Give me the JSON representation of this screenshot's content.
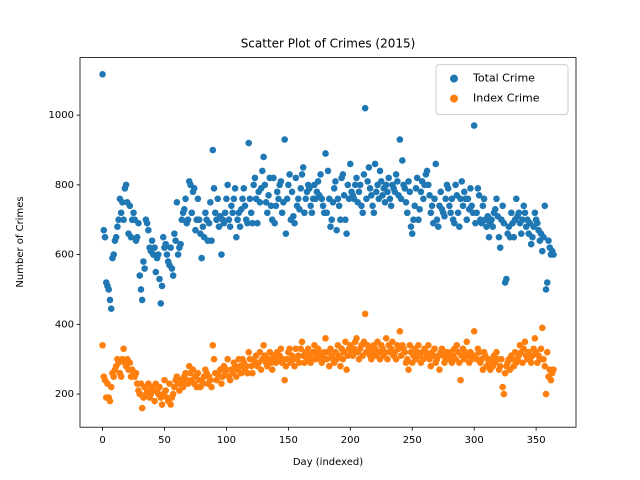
{
  "chart_data": {
    "type": "scatter",
    "title": "Scatter Plot of Crimes (2015)",
    "x_label": "Day (indexed)",
    "y_label": "Number of Crimes",
    "legend": "upper right",
    "xlim": [
      -18.2,
      382.2
    ],
    "ylim": [
      105,
      1165
    ],
    "xticks": [
      0,
      50,
      100,
      150,
      200,
      250,
      300,
      350
    ],
    "yticks": [
      200,
      400,
      600,
      800,
      1000
    ],
    "x": [
      0,
      1,
      2,
      3,
      4,
      5,
      6,
      7,
      8,
      9,
      10,
      11,
      12,
      13,
      14,
      15,
      16,
      17,
      18,
      19,
      20,
      21,
      22,
      23,
      24,
      25,
      26,
      27,
      28,
      29,
      30,
      31,
      32,
      33,
      34,
      35,
      36,
      37,
      38,
      39,
      40,
      41,
      42,
      43,
      44,
      45,
      46,
      47,
      48,
      49,
      50,
      51,
      52,
      53,
      54,
      55,
      56,
      57,
      58,
      59,
      60,
      61,
      62,
      63,
      64,
      65,
      66,
      67,
      68,
      69,
      70,
      71,
      72,
      73,
      74,
      75,
      76,
      77,
      78,
      79,
      80,
      81,
      82,
      83,
      84,
      85,
      86,
      87,
      88,
      89,
      90,
      91,
      92,
      93,
      94,
      95,
      96,
      97,
      98,
      99,
      100,
      101,
      102,
      103,
      104,
      105,
      106,
      107,
      108,
      109,
      110,
      111,
      112,
      113,
      114,
      115,
      116,
      117,
      118,
      119,
      120,
      121,
      122,
      123,
      124,
      125,
      126,
      127,
      128,
      129,
      130,
      131,
      132,
      133,
      134,
      135,
      136,
      137,
      138,
      139,
      140,
      141,
      142,
      143,
      144,
      145,
      146,
      147,
      148,
      149,
      150,
      151,
      152,
      153,
      154,
      155,
      156,
      157,
      158,
      159,
      160,
      161,
      162,
      163,
      164,
      165,
      166,
      167,
      168,
      169,
      170,
      171,
      172,
      173,
      174,
      175,
      176,
      177,
      178,
      179,
      180,
      181,
      182,
      183,
      184,
      185,
      186,
      187,
      188,
      189,
      190,
      191,
      192,
      193,
      194,
      195,
      196,
      197,
      198,
      199,
      200,
      201,
      202,
      203,
      204,
      205,
      206,
      207,
      208,
      209,
      210,
      211,
      212,
      213,
      214,
      215,
      216,
      217,
      218,
      219,
      220,
      221,
      222,
      223,
      224,
      225,
      226,
      227,
      228,
      229,
      230,
      231,
      232,
      233,
      234,
      235,
      236,
      237,
      238,
      239,
      240,
      241,
      242,
      243,
      244,
      245,
      246,
      247,
      248,
      249,
      250,
      251,
      252,
      253,
      254,
      255,
      256,
      257,
      258,
      259,
      260,
      261,
      262,
      263,
      264,
      265,
      266,
      267,
      268,
      269,
      270,
      271,
      272,
      273,
      274,
      275,
      276,
      277,
      278,
      279,
      280,
      281,
      282,
      283,
      284,
      285,
      286,
      287,
      288,
      289,
      290,
      291,
      292,
      293,
      294,
      295,
      296,
      297,
      298,
      299,
      300,
      301,
      302,
      303,
      304,
      305,
      306,
      307,
      308,
      309,
      310,
      311,
      312,
      313,
      314,
      315,
      316,
      317,
      318,
      319,
      320,
      321,
      322,
      323,
      324,
      325,
      326,
      327,
      328,
      329,
      330,
      331,
      332,
      333,
      334,
      335,
      336,
      337,
      338,
      339,
      340,
      341,
      342,
      343,
      344,
      345,
      346,
      347,
      348,
      349,
      350,
      351,
      352,
      353,
      354,
      355,
      356,
      357,
      358,
      359,
      360,
      361,
      362,
      363,
      364
    ],
    "series": [
      {
        "name": "Total Crime",
        "color": "#1f77b4",
        "values": [
          1117,
          670,
          650,
          520,
          510,
          500,
          470,
          445,
          590,
          600,
          640,
          650,
          680,
          700,
          760,
          720,
          750,
          700,
          790,
          800,
          750,
          660,
          740,
          650,
          700,
          720,
          700,
          640,
          650,
          690,
          540,
          500,
          470,
          580,
          560,
          700,
          690,
          670,
          620,
          610,
          640,
          600,
          620,
          550,
          590,
          600,
          530,
          460,
          510,
          650,
          620,
          630,
          600,
          580,
          570,
          620,
          560,
          540,
          660,
          640,
          750,
          600,
          620,
          630,
          700,
          720,
          730,
          760,
          690,
          700,
          810,
          800,
          720,
          780,
          790,
          670,
          700,
          760,
          700,
          660,
          590,
          680,
          650,
          720,
          700,
          640,
          690,
          750,
          640,
          900,
          790,
          720,
          700,
          760,
          680,
          710,
          600,
          700,
          690,
          720,
          760,
          800,
          700,
          680,
          740,
          720,
          760,
          790,
          650,
          700,
          720,
          680,
          730,
          760,
          790,
          740,
          700,
          690,
          920,
          760,
          720,
          690,
          800,
          820,
          760,
          690,
          780,
          750,
          790,
          840,
          880,
          800,
          750,
          720,
          770,
          820,
          740,
          700,
          820,
          690,
          740,
          780,
          760,
          800,
          810,
          720,
          750,
          930,
          660,
          760,
          800,
          830,
          700,
          780,
          710,
          690,
          820,
          740,
          760,
          730,
          790,
          830,
          850,
          720,
          760,
          780,
          800,
          790,
          740,
          720,
          760,
          800,
          760,
          780,
          810,
          770,
          830,
          760,
          740,
          720,
          890,
          720,
          840,
          760,
          680,
          700,
          750,
          790,
          810,
          670,
          760,
          740,
          700,
          820,
          830,
          770,
          700,
          660,
          800,
          760,
          860,
          780,
          770,
          760,
          800,
          820,
          750,
          780,
          800,
          740,
          720,
          830,
          1020,
          760,
          810,
          850,
          790,
          770,
          740,
          720,
          860,
          780,
          800,
          760,
          840,
          810,
          770,
          790,
          750,
          800,
          780,
          820,
          760,
          740,
          800,
          790,
          780,
          830,
          810,
          770,
          930,
          760,
          870,
          800,
          790,
          750,
          720,
          810,
          780,
          680,
          660,
          700,
          740,
          790,
          820,
          700,
          730,
          780,
          810,
          760,
          800,
          830,
          840,
          800,
          770,
          720,
          740,
          690,
          760,
          860,
          700,
          680,
          740,
          780,
          730,
          720,
          710,
          760,
          800,
          790,
          740,
          720,
          760,
          700,
          690,
          800,
          770,
          720,
          680,
          760,
          810,
          740,
          780,
          760,
          700,
          760,
          730,
          790,
          740,
          720,
          970,
          690,
          720,
          790,
          770,
          700,
          690,
          740,
          760,
          700,
          680,
          710,
          650,
          690,
          700,
          680,
          720,
          730,
          760,
          710,
          650,
          620,
          700,
          740,
          690,
          520,
          530,
          660,
          680,
          650,
          720,
          690,
          650,
          700,
          760,
          710,
          720,
          690,
          660,
          700,
          740,
          720,
          680,
          700,
          660,
          690,
          630,
          650,
          680,
          720,
          700,
          690,
          670,
          640,
          660,
          610,
          650,
          740,
          500,
          520,
          640,
          620,
          600,
          610,
          600
        ]
      },
      {
        "name": "Index Crime",
        "color": "#ff7f0e",
        "values": [
          340,
          250,
          240,
          190,
          230,
          190,
          180,
          220,
          260,
          250,
          270,
          280,
          300,
          290,
          260,
          250,
          300,
          330,
          290,
          280,
          300,
          270,
          290,
          250,
          270,
          260,
          250,
          260,
          230,
          210,
          200,
          230,
          160,
          190,
          220,
          200,
          210,
          230,
          190,
          200,
          220,
          210,
          180,
          230,
          210,
          200,
          220,
          190,
          170,
          200,
          240,
          210,
          190,
          180,
          230,
          170,
          190,
          200,
          220,
          240,
          250,
          230,
          210,
          240,
          230,
          220,
          250,
          260,
          240,
          230,
          280,
          260,
          240,
          270,
          230,
          250,
          220,
          260,
          240,
          220,
          240,
          230,
          250,
          270,
          260,
          230,
          250,
          240,
          220,
          340,
          300,
          260,
          240,
          260,
          250,
          270,
          230,
          250,
          280,
          260,
          270,
          300,
          250,
          240,
          270,
          260,
          290,
          280,
          250,
          270,
          300,
          280,
          260,
          300,
          290,
          270,
          280,
          260,
          320,
          300,
          280,
          260,
          300,
          290,
          310,
          280,
          290,
          320,
          270,
          300,
          340,
          310,
          290,
          280,
          300,
          320,
          290,
          270,
          310,
          300,
          290,
          320,
          300,
          310,
          330,
          290,
          300,
          240,
          280,
          300,
          320,
          330,
          290,
          310,
          300,
          280,
          330,
          300,
          310,
          290,
          330,
          350,
          310,
          290,
          320,
          300,
          330,
          310,
          290,
          300,
          320,
          340,
          300,
          310,
          330,
          320,
          300,
          290,
          310,
          320,
          360,
          300,
          320,
          280,
          330,
          310,
          300,
          290,
          320,
          300,
          340,
          310,
          280,
          330,
          300,
          320,
          350,
          270,
          310,
          330,
          340,
          320,
          310,
          330,
          350,
          360,
          320,
          300,
          330,
          340,
          310,
          350,
          430,
          320,
          340,
          330,
          310,
          300,
          320,
          340,
          330,
          310,
          350,
          320,
          300,
          340,
          330,
          310,
          320,
          360,
          300,
          340,
          320,
          330,
          350,
          310,
          320,
          300,
          340,
          330,
          380,
          310,
          340,
          330,
          320,
          290,
          300,
          270,
          340,
          320,
          290,
          310,
          330,
          300,
          320,
          340,
          310,
          290,
          320,
          300,
          330,
          320,
          310,
          340,
          300,
          280,
          320,
          310,
          330,
          290,
          300,
          310,
          270,
          320,
          330,
          310,
          290,
          300,
          320,
          310,
          300,
          320,
          290,
          310,
          330,
          300,
          340,
          320,
          290,
          240,
          310,
          330,
          300,
          320,
          350,
          310,
          290,
          320,
          300,
          310,
          380,
          310,
          300,
          330,
          320,
          290,
          300,
          270,
          320,
          310,
          280,
          300,
          290,
          270,
          300,
          280,
          310,
          290,
          320,
          300,
          270,
          280,
          300,
          220,
          200,
          260,
          280,
          290,
          300,
          270,
          310,
          300,
          280,
          320,
          290,
          300,
          310,
          340,
          320,
          290,
          330,
          350,
          310,
          300,
          320,
          300,
          290,
          310,
          330,
          360,
          320,
          290,
          310,
          300,
          330,
          390,
          300,
          280,
          200,
          320,
          250,
          270,
          240,
          260,
          270
        ]
      }
    ]
  }
}
